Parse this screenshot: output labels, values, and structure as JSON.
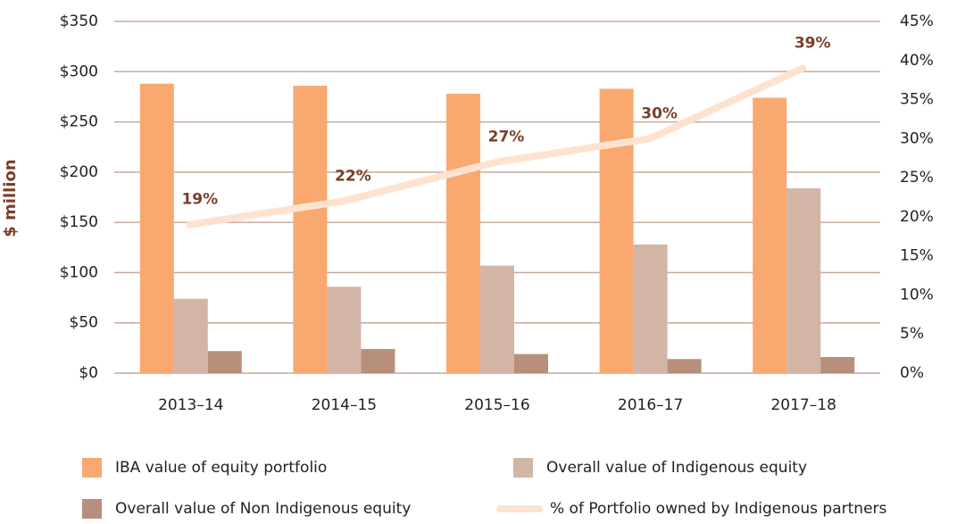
{
  "chart_data": {
    "type": "bar",
    "y_label": "$ million",
    "categories": [
      "2013–14",
      "2014–15",
      "2015–16",
      "2016–17",
      "2017–18"
    ],
    "series": [
      {
        "name": "IBA value of equity portfolio",
        "color": "#f9a870",
        "values": [
          288,
          286,
          278,
          283,
          274
        ]
      },
      {
        "name": "Overall value of Indigenous equity",
        "color": "#d3b5a6",
        "values": [
          74,
          86,
          107,
          128,
          184
        ]
      },
      {
        "name": "Overall value of Non Indigenous equity",
        "color": "#b88f7c",
        "values": [
          22,
          24,
          19,
          14,
          16
        ]
      },
      {
        "name": "% of Portfolio owned by Indigenous partners",
        "color": "#fde3cf",
        "type": "line",
        "axis": "y2",
        "values": [
          19,
          22,
          27,
          30,
          39
        ],
        "value_labels": [
          "19%",
          "22%",
          "27%",
          "30%",
          "39%"
        ]
      }
    ],
    "ylim": [
      0,
      350
    ],
    "yticks": [
      {
        "value": 0,
        "label": "$0"
      },
      {
        "value": 50,
        "label": "$50"
      },
      {
        "value": 100,
        "label": "$100"
      },
      {
        "value": 150,
        "label": "$150"
      },
      {
        "value": 200,
        "label": "$200"
      },
      {
        "value": 250,
        "label": "$250"
      },
      {
        "value": 300,
        "label": "$300"
      },
      {
        "value": 350,
        "label": "$350"
      }
    ],
    "y2lim": [
      0,
      45
    ],
    "y2ticks": [
      {
        "value": 0,
        "label": "0%"
      },
      {
        "value": 5,
        "label": "5%"
      },
      {
        "value": 10,
        "label": "10%"
      },
      {
        "value": 15,
        "label": "15%"
      },
      {
        "value": 20,
        "label": "20%"
      },
      {
        "value": 25,
        "label": "25%"
      },
      {
        "value": 30,
        "label": "30%"
      },
      {
        "value": 35,
        "label": "35%"
      },
      {
        "value": 40,
        "label": "40%"
      },
      {
        "value": 45,
        "label": "45%"
      }
    ],
    "grid": true,
    "label_color": "#7a3e2a",
    "grid_color": "#c9a99b"
  }
}
